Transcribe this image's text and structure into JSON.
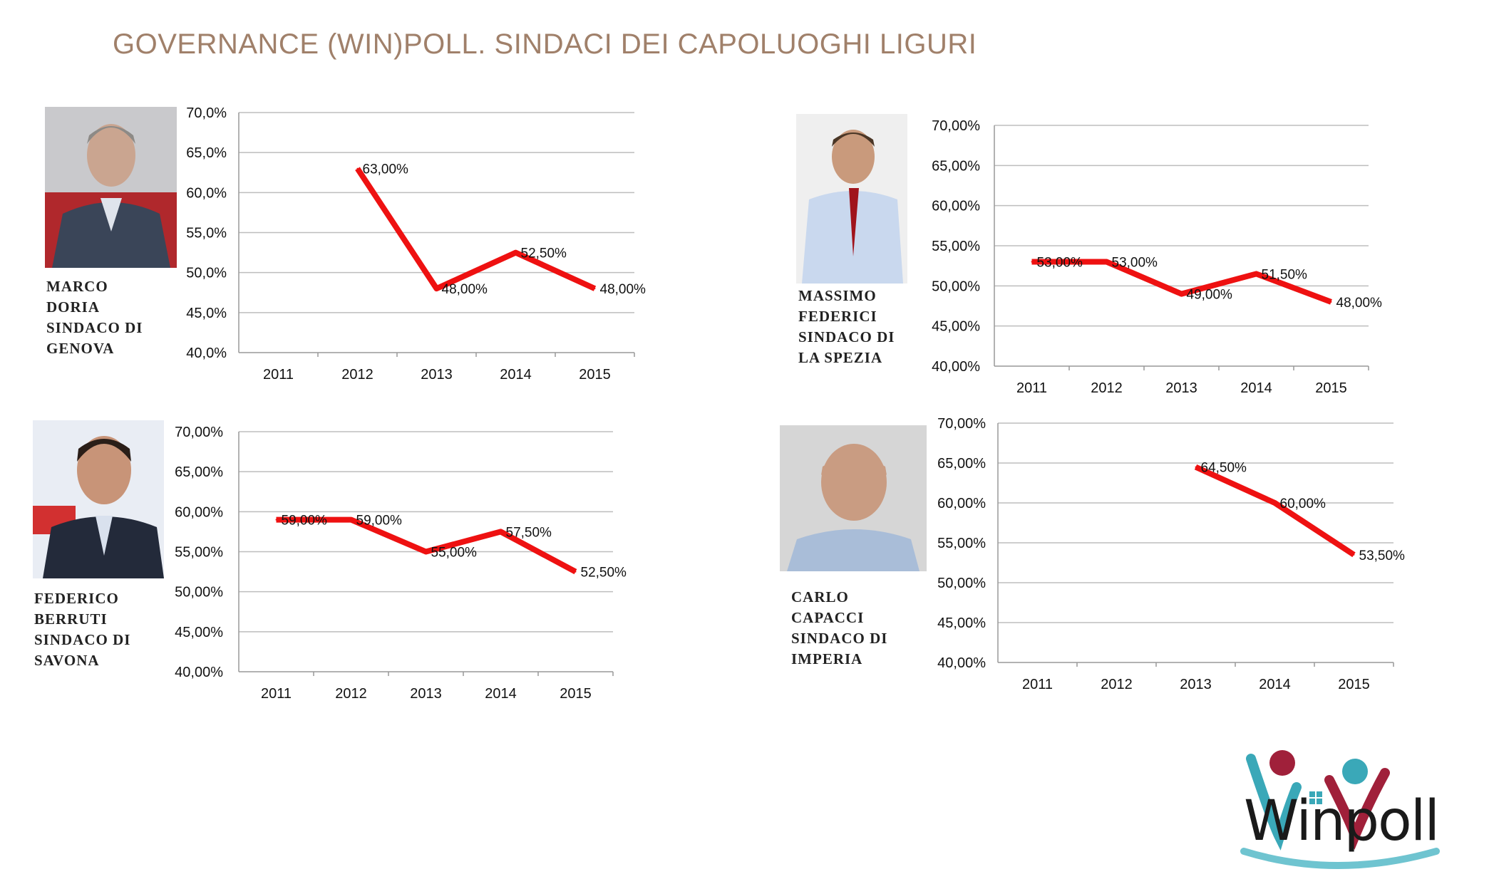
{
  "title": "GOVERNANCE (WIN)POLL. SINDACI DEI CAPOLUOGHI LIGURI",
  "logo": {
    "text": "Winpoll",
    "colors": {
      "teal": "#3aa8b8",
      "red": "#a0203a"
    }
  },
  "line_color": "#ee1111",
  "panels": [
    {
      "caption": [
        "MARCO",
        "DORIA",
        "SINDACO DI",
        "GENOVA"
      ],
      "photo": "mayor-portrait-doria"
    },
    {
      "caption": [
        "MASSIMO",
        "FEDERICI",
        "SINDACO DI",
        "LA SPEZIA"
      ],
      "photo": "mayor-portrait-federici"
    },
    {
      "caption": [
        "FEDERICO",
        "BERRUTI",
        "SINDACO DI",
        "SAVONA"
      ],
      "photo": "mayor-portrait-berruti"
    },
    {
      "caption": [
        "CARLO",
        "CAPACCI",
        "SINDACO DI",
        "IMPERIA"
      ],
      "photo": "mayor-portrait-capacci"
    }
  ],
  "chart_data": [
    {
      "type": "line",
      "categories": [
        "2011",
        "2012",
        "2013",
        "2014",
        "2015"
      ],
      "values": [
        null,
        63.0,
        48.0,
        52.5,
        48.0
      ],
      "labels": [
        null,
        "63,00%",
        "48,00%",
        "52,50%",
        "48,00%"
      ],
      "ylim": [
        40,
        70
      ],
      "yticks": [
        "70,0%",
        "65,0%",
        "60,0%",
        "55,0%",
        "50,0%",
        "45,0%",
        "40,0%"
      ],
      "grid": true
    },
    {
      "type": "line",
      "categories": [
        "2011",
        "2012",
        "2013",
        "2014",
        "2015"
      ],
      "values": [
        53.0,
        53.0,
        49.0,
        51.5,
        48.0
      ],
      "labels": [
        "53,00%",
        "53,00%",
        "49,00%",
        "51,50%",
        "48,00%"
      ],
      "ylim": [
        40,
        70
      ],
      "yticks": [
        "70,00%",
        "65,00%",
        "60,00%",
        "55,00%",
        "50,00%",
        "45,00%",
        "40,00%"
      ],
      "grid": true
    },
    {
      "type": "line",
      "categories": [
        "2011",
        "2012",
        "2013",
        "2014",
        "2015"
      ],
      "values": [
        59.0,
        59.0,
        55.0,
        57.5,
        52.5
      ],
      "labels": [
        "59,00%",
        "59,00%",
        "55,00%",
        "57,50%",
        "52,50%"
      ],
      "ylim": [
        40,
        70
      ],
      "yticks": [
        "70,00%",
        "65,00%",
        "60,00%",
        "55,00%",
        "50,00%",
        "45,00%",
        "40,00%"
      ],
      "grid": true
    },
    {
      "type": "line",
      "categories": [
        "2011",
        "2012",
        "2013",
        "2014",
        "2015"
      ],
      "values": [
        null,
        null,
        64.5,
        60.0,
        53.5
      ],
      "labels": [
        null,
        null,
        "64,50%",
        "60,00%",
        "53,50%"
      ],
      "ylim": [
        40,
        70
      ],
      "yticks": [
        "70,00%",
        "65,00%",
        "60,00%",
        "55,00%",
        "50,00%",
        "45,00%",
        "40,00%"
      ],
      "grid": true
    }
  ]
}
